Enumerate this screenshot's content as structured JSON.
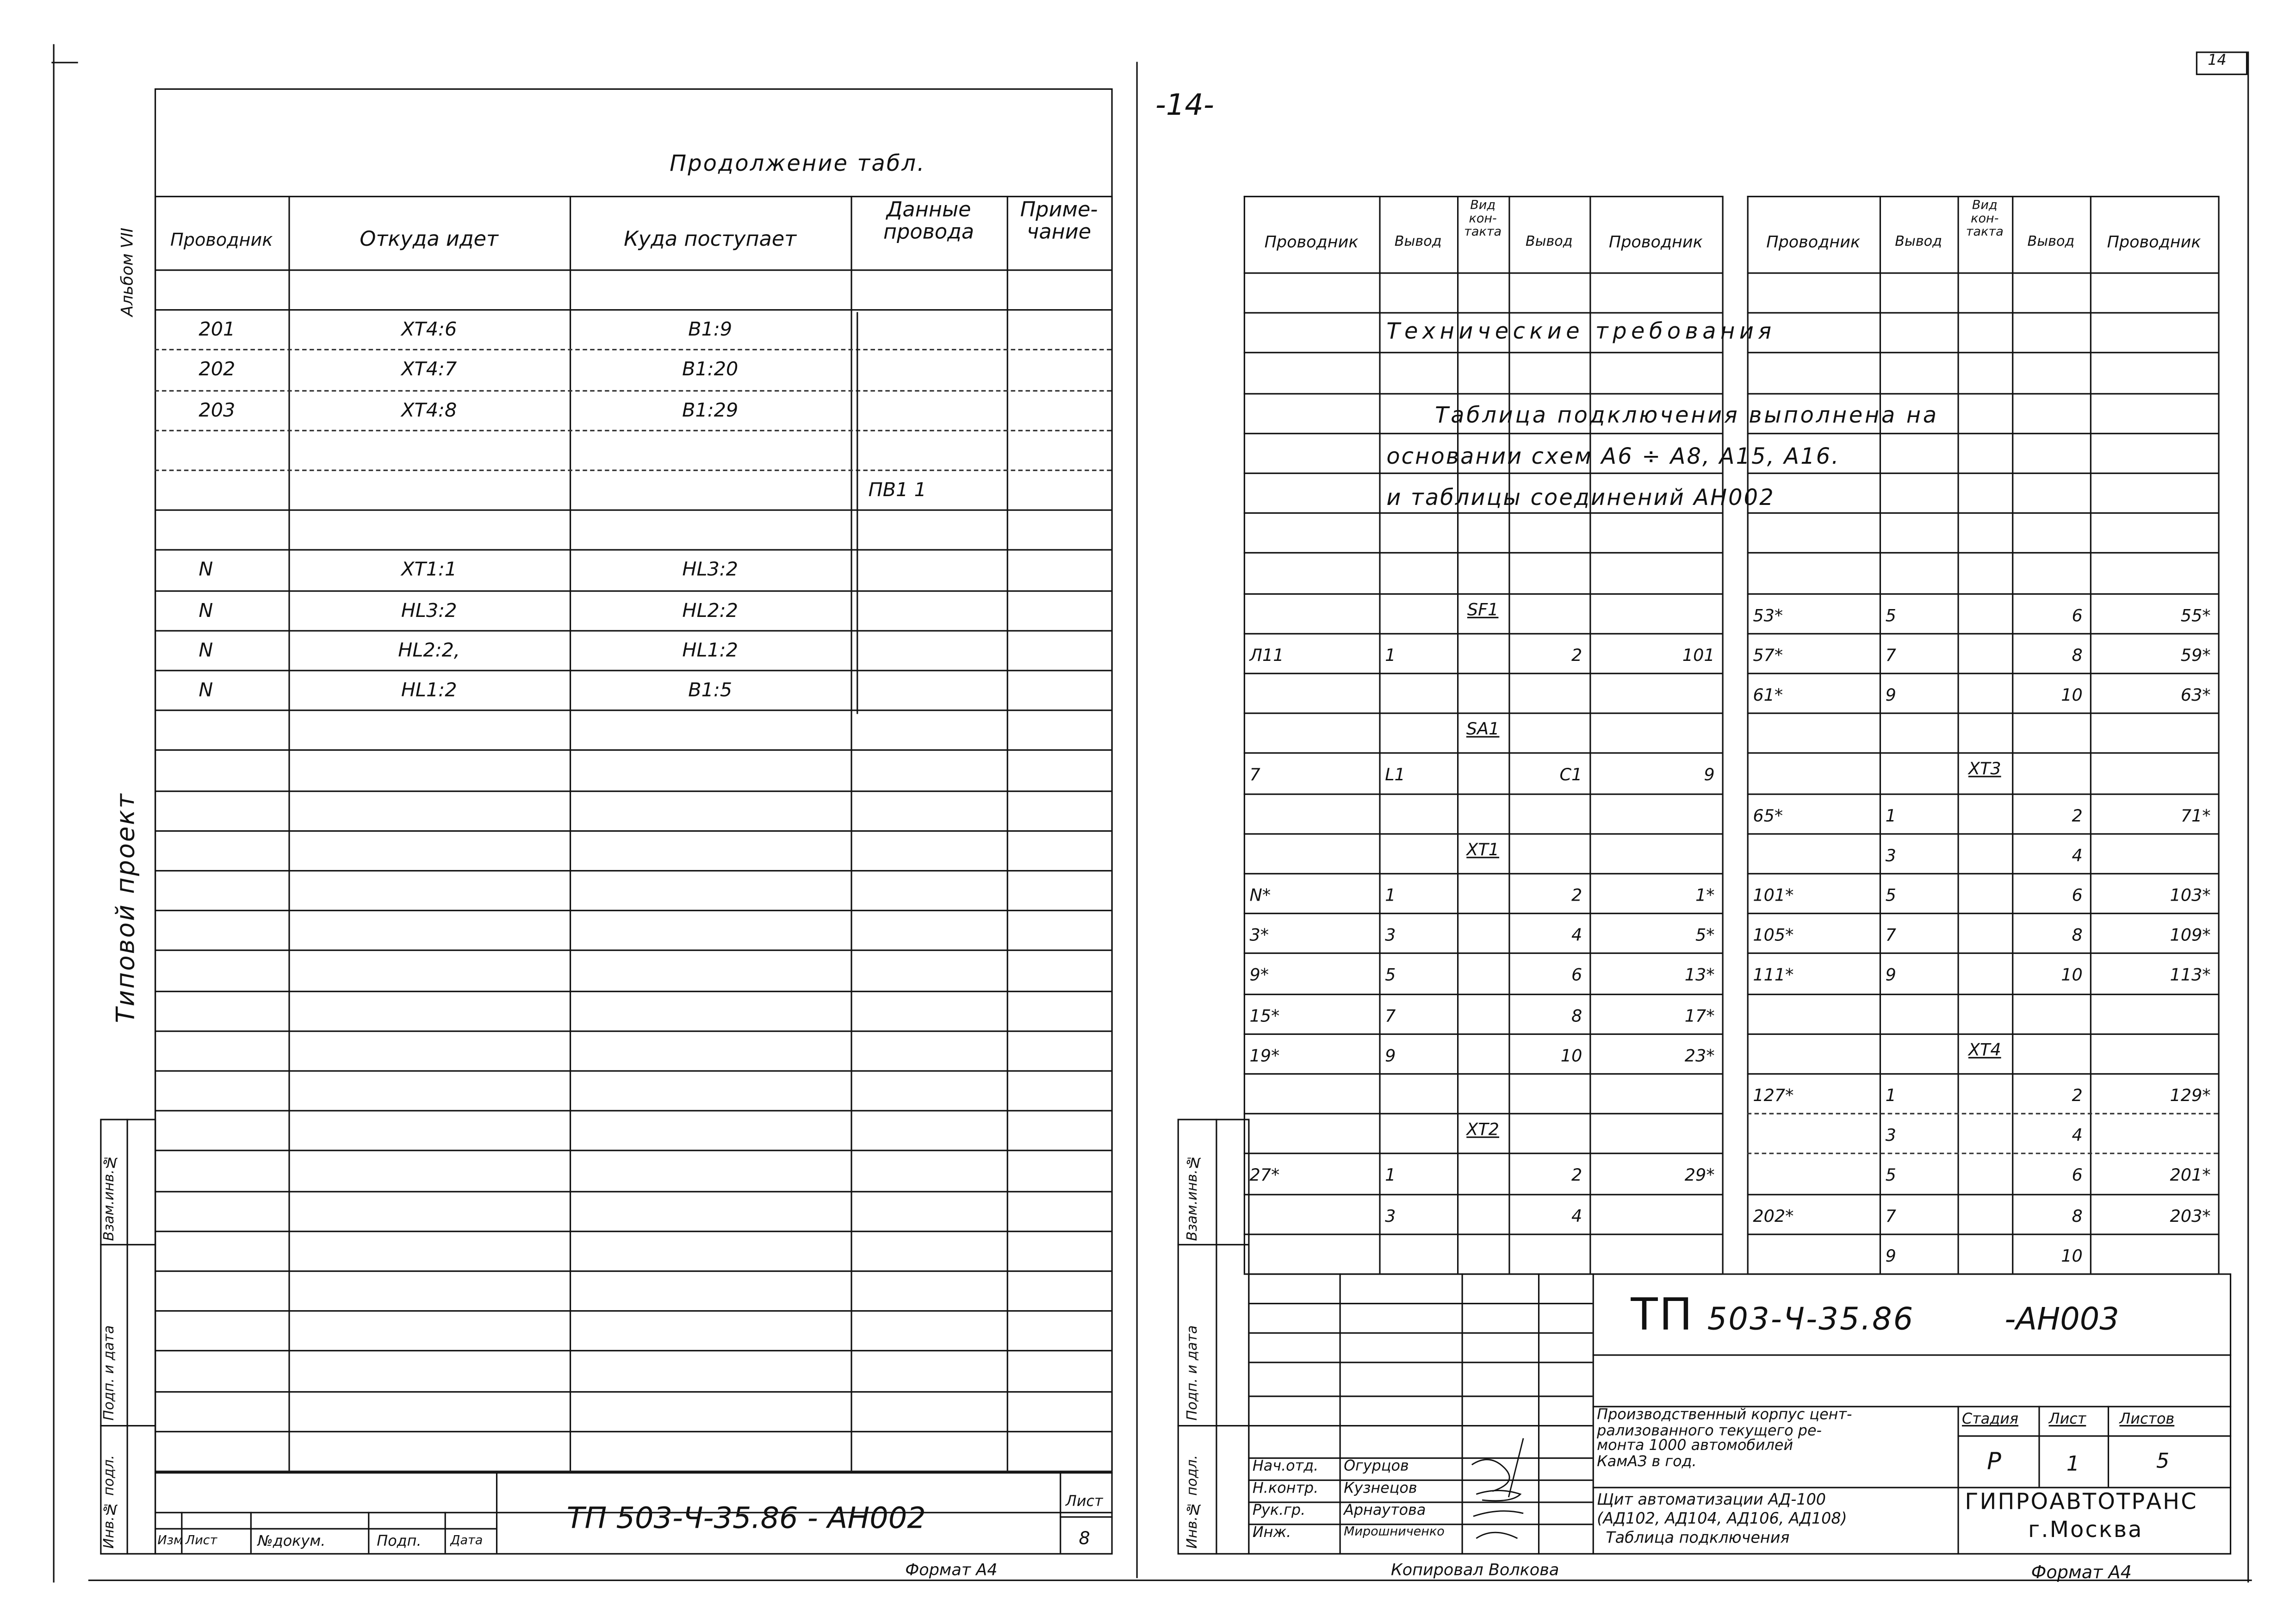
{
  "left_sheet": {
    "caption": "Продолжение табл.",
    "side_album": "Альбом VII",
    "side_project": "Типовой проект",
    "stamps": [
      "Взам.инв.№",
      "Подп. и дата",
      "Инв.№ подл."
    ],
    "headers": [
      "Проводник",
      "Откуда идет",
      "Куда поступает",
      "Данные провода",
      "Приме-чание"
    ],
    "rows": [
      {
        "row": 1,
        "cells": [
          "201",
          "XT4:6",
          "B1:9",
          "",
          ""
        ]
      },
      {
        "row": 2,
        "cells": [
          "202",
          "XT4:7",
          "B1:20",
          "",
          ""
        ]
      },
      {
        "row": 3,
        "cells": [
          "203",
          "XT4:8",
          "B1:29",
          "",
          ""
        ]
      },
      {
        "row": 5,
        "cells": [
          "",
          "",
          "",
          "ПВ1   1",
          ""
        ]
      },
      {
        "row": 7,
        "cells": [
          "N",
          "XT1:1",
          "HL3:2",
          "",
          ""
        ]
      },
      {
        "row": 8,
        "cells": [
          "N",
          "HL3:2",
          "HL2:2",
          "",
          ""
        ]
      },
      {
        "row": 9,
        "cells": [
          "N",
          "HL2:2,",
          "HL1:2",
          "",
          ""
        ]
      },
      {
        "row": 10,
        "cells": [
          "N",
          "HL1:2",
          "B1:5",
          "",
          ""
        ]
      }
    ],
    "title_block": {
      "labels": [
        "Изм",
        "Лист",
        "№докум.",
        "Подп.",
        "Дата"
      ],
      "designation": "ТП 503-Ч-35.86   - АН002",
      "sheet_label": "Лист",
      "sheet_number": "8"
    },
    "format": "Формат А4"
  },
  "right_sheet": {
    "page_marker": "-14-",
    "corner_number": "14",
    "stamps": [
      "Взам.инв.№",
      "Подп. и дата",
      "Инв.№ подл."
    ],
    "headers": [
      "Проводник",
      "Вывод",
      "Вид кон-такта",
      "Вывод",
      "Проводник"
    ],
    "notes": [
      "Технические требования",
      "Таблица подключения выполнена на",
      "основании схем А6 ÷ А8, А15, А16.",
      "и таблицы соединений АН002"
    ],
    "rows": [
      {
        "row": 8,
        "a": [
          "",
          "",
          "SF1",
          "",
          ""
        ],
        "b": [
          "53*",
          "5",
          "",
          "6",
          "55*"
        ]
      },
      {
        "row": 9,
        "a": [
          "Л11",
          "1",
          "",
          "2",
          "101"
        ],
        "b": [
          "57*",
          "7",
          "",
          "8",
          "59*"
        ]
      },
      {
        "row": 10,
        "a": [
          "",
          "",
          "",
          "",
          ""
        ],
        "b": [
          "61*",
          "9",
          "",
          "10",
          "63*"
        ]
      },
      {
        "row": 11,
        "a": [
          "",
          "",
          "SA1",
          "",
          ""
        ],
        "b": [
          "",
          "",
          "",
          "",
          ""
        ]
      },
      {
        "row": 12,
        "a": [
          "7",
          "L1",
          "",
          "C1",
          "9"
        ],
        "b": [
          "",
          "",
          "XT3",
          "",
          ""
        ]
      },
      {
        "row": 13,
        "a": [
          "",
          "",
          "",
          "",
          ""
        ],
        "b": [
          "65*",
          "1",
          "",
          "2",
          "71*"
        ]
      },
      {
        "row": 14,
        "a": [
          "",
          "",
          "XT1",
          "",
          ""
        ],
        "b": [
          "",
          "3",
          "",
          "4",
          ""
        ]
      },
      {
        "row": 15,
        "a": [
          "N*",
          "1",
          "",
          "2",
          "1*"
        ],
        "b": [
          "101*",
          "5",
          "",
          "6",
          "103*"
        ]
      },
      {
        "row": 16,
        "a": [
          "3*",
          "3",
          "",
          "4",
          "5*"
        ],
        "b": [
          "105*",
          "7",
          "",
          "8",
          "109*"
        ]
      },
      {
        "row": 17,
        "a": [
          "9*",
          "5",
          "",
          "6",
          "13*"
        ],
        "b": [
          "111*",
          "9",
          "",
          "10",
          "113*"
        ]
      },
      {
        "row": 18,
        "a": [
          "15*",
          "7",
          "",
          "8",
          "17*"
        ],
        "b": [
          "",
          "",
          "",
          "",
          ""
        ]
      },
      {
        "row": 19,
        "a": [
          "19*",
          "9",
          "",
          "10",
          "23*"
        ],
        "b": [
          "",
          "",
          "XT4",
          "",
          ""
        ]
      },
      {
        "row": 20,
        "a": [
          "",
          "",
          "",
          "",
          ""
        ],
        "b": [
          "127*",
          "1",
          "",
          "2",
          "129*"
        ]
      },
      {
        "row": 21,
        "a": [
          "",
          "",
          "XT2",
          "",
          ""
        ],
        "b": [
          "",
          "3",
          "",
          "4",
          ""
        ]
      },
      {
        "row": 22,
        "a": [
          "27*",
          "1",
          "",
          "2",
          "29*"
        ],
        "b": [
          "",
          "5",
          "",
          "6",
          "201*"
        ]
      },
      {
        "row": 23,
        "a": [
          "",
          "3",
          "",
          "4",
          ""
        ],
        "b": [
          "202*",
          "7",
          "",
          "8",
          "203*"
        ]
      },
      {
        "row": 24,
        "a": [
          "",
          "",
          "",
          "",
          ""
        ],
        "b": [
          "",
          "9",
          "",
          "10",
          ""
        ]
      }
    ],
    "title_block": {
      "designation_prefix": "ТП",
      "designation": "503-Ч-35.86",
      "designation_suffix": "-АН003",
      "object": "Производственный корпус цент-рализованного текущего ре-монта 1000 автомобилей КамАЗ в год.",
      "object_lines": [
        "Производственный корпус цент-",
        "рализованного текущего ре-",
        "монта  1000 автомобилей",
        "КамАЗ   в год."
      ],
      "stage_label": "Стадия",
      "sheet_label": "Лист",
      "sheets_label": "Листов",
      "stage": "Р",
      "sheet": "1",
      "sheets": "5",
      "drawing_lines": [
        "Щит автоматизации АД-100",
        "(АД102, АД104, АД106, АД108)",
        "Таблица подключения"
      ],
      "organization": "ГИПРОАВТОТРАНС",
      "city": "г.Москва",
      "staff": [
        {
          "role": "Нач.отд.",
          "name": "Огурцов"
        },
        {
          "role": "Н.контр.",
          "name": "Кузнецов"
        },
        {
          "role": "Рук.гр.",
          "name": "Арнаутова"
        },
        {
          "role": "Инж.",
          "name": "Мирошниченко"
        }
      ]
    },
    "copied": "Копировал Волкова",
    "format": "Формат А4"
  }
}
